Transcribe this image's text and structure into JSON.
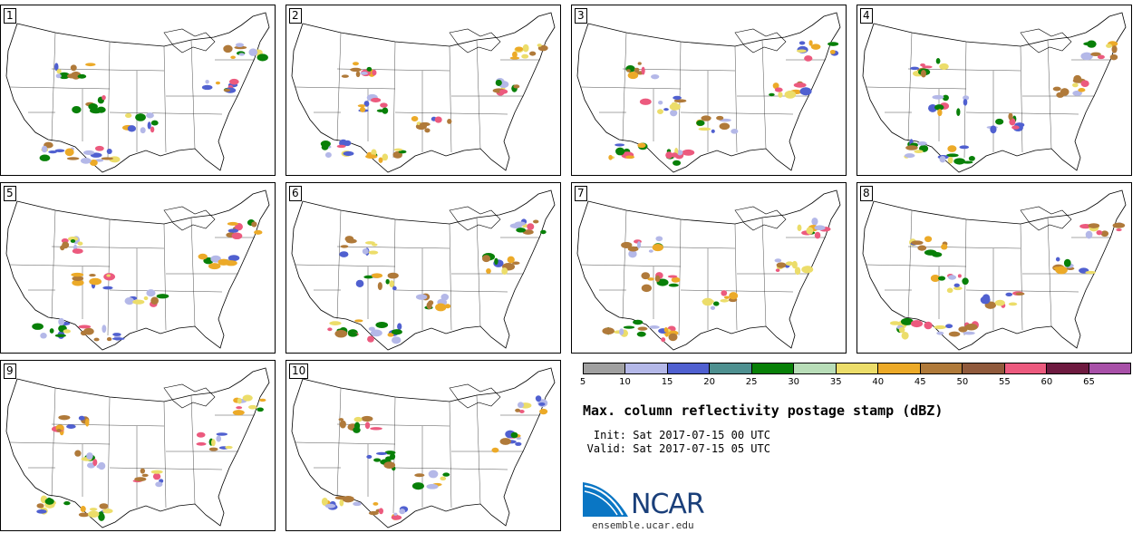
{
  "members": [
    "1",
    "2",
    "3",
    "4",
    "5",
    "6",
    "7",
    "8",
    "9",
    "10"
  ],
  "legend": {
    "colors": [
      "#a0a0a0",
      "#b4b8e8",
      "#5060d0",
      "#4e9090",
      "#088008",
      "#b8ddb8",
      "#ecdd6a",
      "#ecaa28",
      "#b07a3a",
      "#905a3c",
      "#ec5a7e",
      "#6e1a40",
      "#a850a8"
    ],
    "tick_labels": [
      "5",
      "10",
      "15",
      "20",
      "25",
      "30",
      "35",
      "40",
      "45",
      "50",
      "55",
      "60",
      "65"
    ]
  },
  "title": "Max. column reflectivity postage stamp (dBZ)",
  "init_label": "Init:",
  "init_value": "Sat 2017-07-15 00 UTC",
  "valid_label": "Valid:",
  "valid_value": "Sat 2017-07-15 05 UTC",
  "logo_text": "NCAR",
  "url": "ensemble.ucar.edu"
}
